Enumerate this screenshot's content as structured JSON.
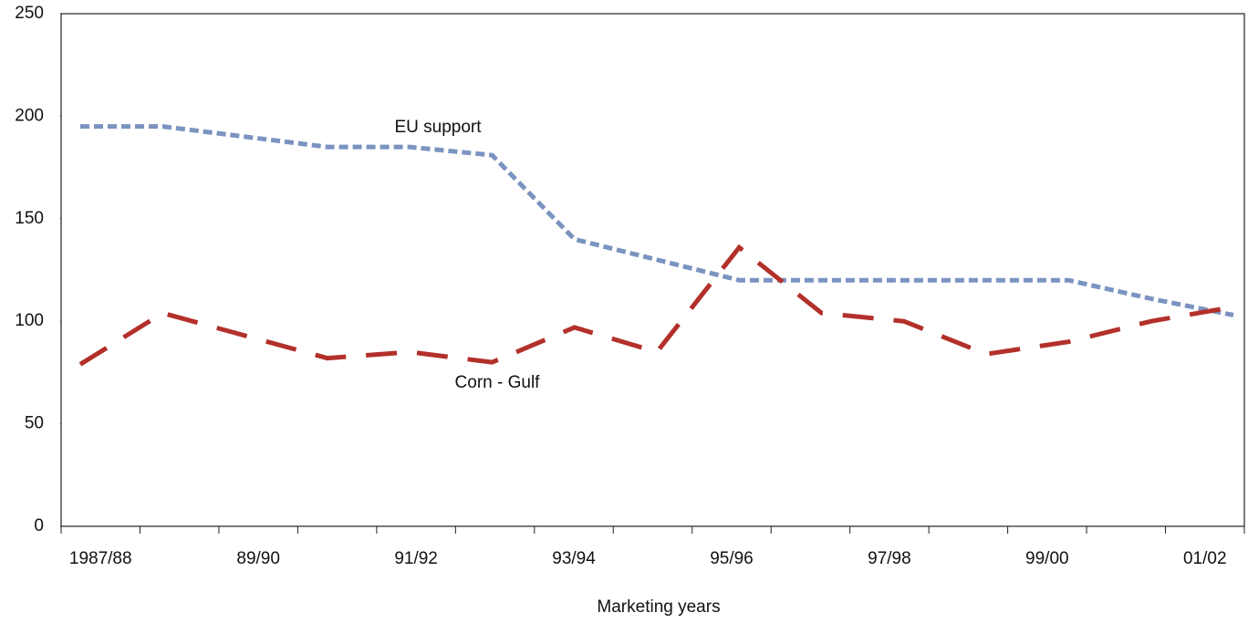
{
  "chart_data": {
    "type": "line",
    "xlabel": "Marketing years",
    "categories": [
      "1987/88",
      null,
      "89/90",
      null,
      "91/92",
      null,
      "93/94",
      null,
      "95/96",
      null,
      "97/98",
      null,
      "99/00",
      null,
      "01/02"
    ],
    "series": [
      {
        "name": "EU support",
        "color": "#7b93c0",
        "dash": "dotted",
        "values": [
          195,
          195,
          190,
          185,
          185,
          181,
          140,
          130,
          120,
          120,
          120,
          120,
          120,
          111,
          103
        ]
      },
      {
        "name": "Corn - Gulf",
        "color": "#b3302a",
        "dash": "dashed",
        "values": [
          79,
          104,
          93,
          82,
          85,
          80,
          97,
          85,
          136,
          104,
          100,
          84,
          90,
          100,
          107
        ]
      }
    ],
    "ylim": [
      0,
      250
    ],
    "yticks": [
      0,
      50,
      100,
      150,
      200,
      250
    ],
    "grid": false
  }
}
